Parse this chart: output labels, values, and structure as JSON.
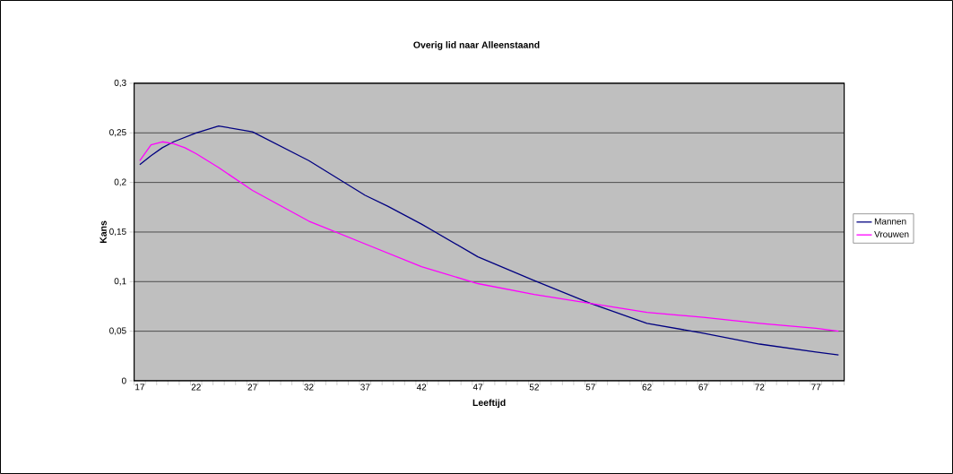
{
  "chart_data": {
    "type": "line",
    "title": "Overig lid naar Alleenstaand",
    "xlabel": "Leeftijd",
    "ylabel": "Kans",
    "xlim": [
      16.5,
      79.5
    ],
    "xticks": [
      {
        "value": 16.5,
        "label": null
      },
      {
        "value": 17.5,
        "label": null
      },
      {
        "value": 18.5,
        "label": null
      },
      {
        "value": 19.5,
        "label": null
      },
      {
        "value": 20.5,
        "label": null
      },
      {
        "value": 21.5,
        "label": null
      },
      {
        "value": 22.5,
        "label": null
      },
      {
        "value": 23.5,
        "label": null
      },
      {
        "value": 24.5,
        "label": null
      },
      {
        "value": 25.5,
        "label": null
      },
      {
        "value": 26.5,
        "label": null
      },
      {
        "value": 27.5,
        "label": null
      },
      {
        "value": 28.5,
        "label": null
      },
      {
        "value": 29.5,
        "label": null
      },
      {
        "value": 30.5,
        "label": null
      },
      {
        "value": 31.5,
        "label": null
      },
      {
        "value": 32.5,
        "label": null
      },
      {
        "value": 33.5,
        "label": null
      },
      {
        "value": 34.5,
        "label": null
      },
      {
        "value": 35.5,
        "label": null
      },
      {
        "value": 36.5,
        "label": null
      },
      {
        "value": 37.5,
        "label": null
      },
      {
        "value": 38.5,
        "label": null
      },
      {
        "value": 39.5,
        "label": null
      },
      {
        "value": 40.5,
        "label": null
      },
      {
        "value": 41.5,
        "label": null
      },
      {
        "value": 42.5,
        "label": null
      },
      {
        "value": 43.5,
        "label": null
      },
      {
        "value": 44.5,
        "label": null
      },
      {
        "value": 45.5,
        "label": null
      },
      {
        "value": 46.5,
        "label": null
      },
      {
        "value": 47.5,
        "label": null
      },
      {
        "value": 48.5,
        "label": null
      },
      {
        "value": 49.5,
        "label": null
      },
      {
        "value": 50.5,
        "label": null
      },
      {
        "value": 51.5,
        "label": null
      },
      {
        "value": 52.5,
        "label": null
      },
      {
        "value": 53.5,
        "label": null
      },
      {
        "value": 54.5,
        "label": null
      },
      {
        "value": 55.5,
        "label": null
      },
      {
        "value": 56.5,
        "label": null
      },
      {
        "value": 57.5,
        "label": null
      },
      {
        "value": 58.5,
        "label": null
      },
      {
        "value": 59.5,
        "label": null
      },
      {
        "value": 60.5,
        "label": null
      },
      {
        "value": 61.5,
        "label": null
      },
      {
        "value": 62.5,
        "label": null
      },
      {
        "value": 63.5,
        "label": null
      },
      {
        "value": 64.5,
        "label": null
      },
      {
        "value": 65.5,
        "label": null
      },
      {
        "value": 66.5,
        "label": null
      },
      {
        "value": 67.5,
        "label": null
      },
      {
        "value": 68.5,
        "label": null
      },
      {
        "value": 69.5,
        "label": null
      },
      {
        "value": 70.5,
        "label": null
      },
      {
        "value": 71.5,
        "label": null
      },
      {
        "value": 72.5,
        "label": null
      },
      {
        "value": 73.5,
        "label": null
      },
      {
        "value": 74.5,
        "label": null
      },
      {
        "value": 75.5,
        "label": null
      },
      {
        "value": 76.5,
        "label": null
      },
      {
        "value": 77.5,
        "label": null
      },
      {
        "value": 78.5,
        "label": null
      },
      {
        "value": 79.5,
        "label": null
      },
      17,
      22,
      27,
      32,
      37,
      42,
      47,
      52,
      57,
      62,
      67,
      72,
      77
    ],
    "ylim": [
      0,
      0.3
    ],
    "yticks": [
      0,
      {
        "value": 0.05,
        "label": "0,05"
      },
      {
        "value": 0.1,
        "label": "0,1"
      },
      {
        "value": 0.15,
        "label": "0,15"
      },
      {
        "value": 0.2,
        "label": "0,2"
      },
      {
        "value": 0.25,
        "label": "0,25"
      },
      {
        "value": 0.3,
        "label": "0,3"
      }
    ],
    "grid": "y",
    "legend": "right",
    "series": [
      {
        "name": "Mannen",
        "color": "#000080",
        "x": [
          17,
          18,
          19,
          20,
          22,
          24,
          27,
          32,
          37,
          39,
          42,
          47,
          52,
          57,
          62,
          66,
          67,
          72,
          77,
          79
        ],
        "values": [
          0.218,
          0.227,
          0.235,
          0.241,
          0.25,
          0.257,
          0.251,
          0.222,
          0.187,
          0.176,
          0.158,
          0.125,
          0.101,
          0.078,
          0.058,
          0.05,
          0.048,
          0.037,
          0.029,
          0.026
        ]
      },
      {
        "name": "Vrouwen",
        "color": "#ff00ff",
        "x": [
          17,
          18,
          19,
          20,
          21,
          22,
          24,
          27,
          32,
          37,
          42,
          47,
          52,
          57,
          62,
          67,
          72,
          77,
          79
        ],
        "values": [
          0.222,
          0.238,
          0.241,
          0.239,
          0.235,
          0.229,
          0.215,
          0.192,
          0.161,
          0.138,
          0.115,
          0.098,
          0.087,
          0.078,
          0.069,
          0.064,
          0.058,
          0.053,
          0.05
        ]
      }
    ]
  }
}
